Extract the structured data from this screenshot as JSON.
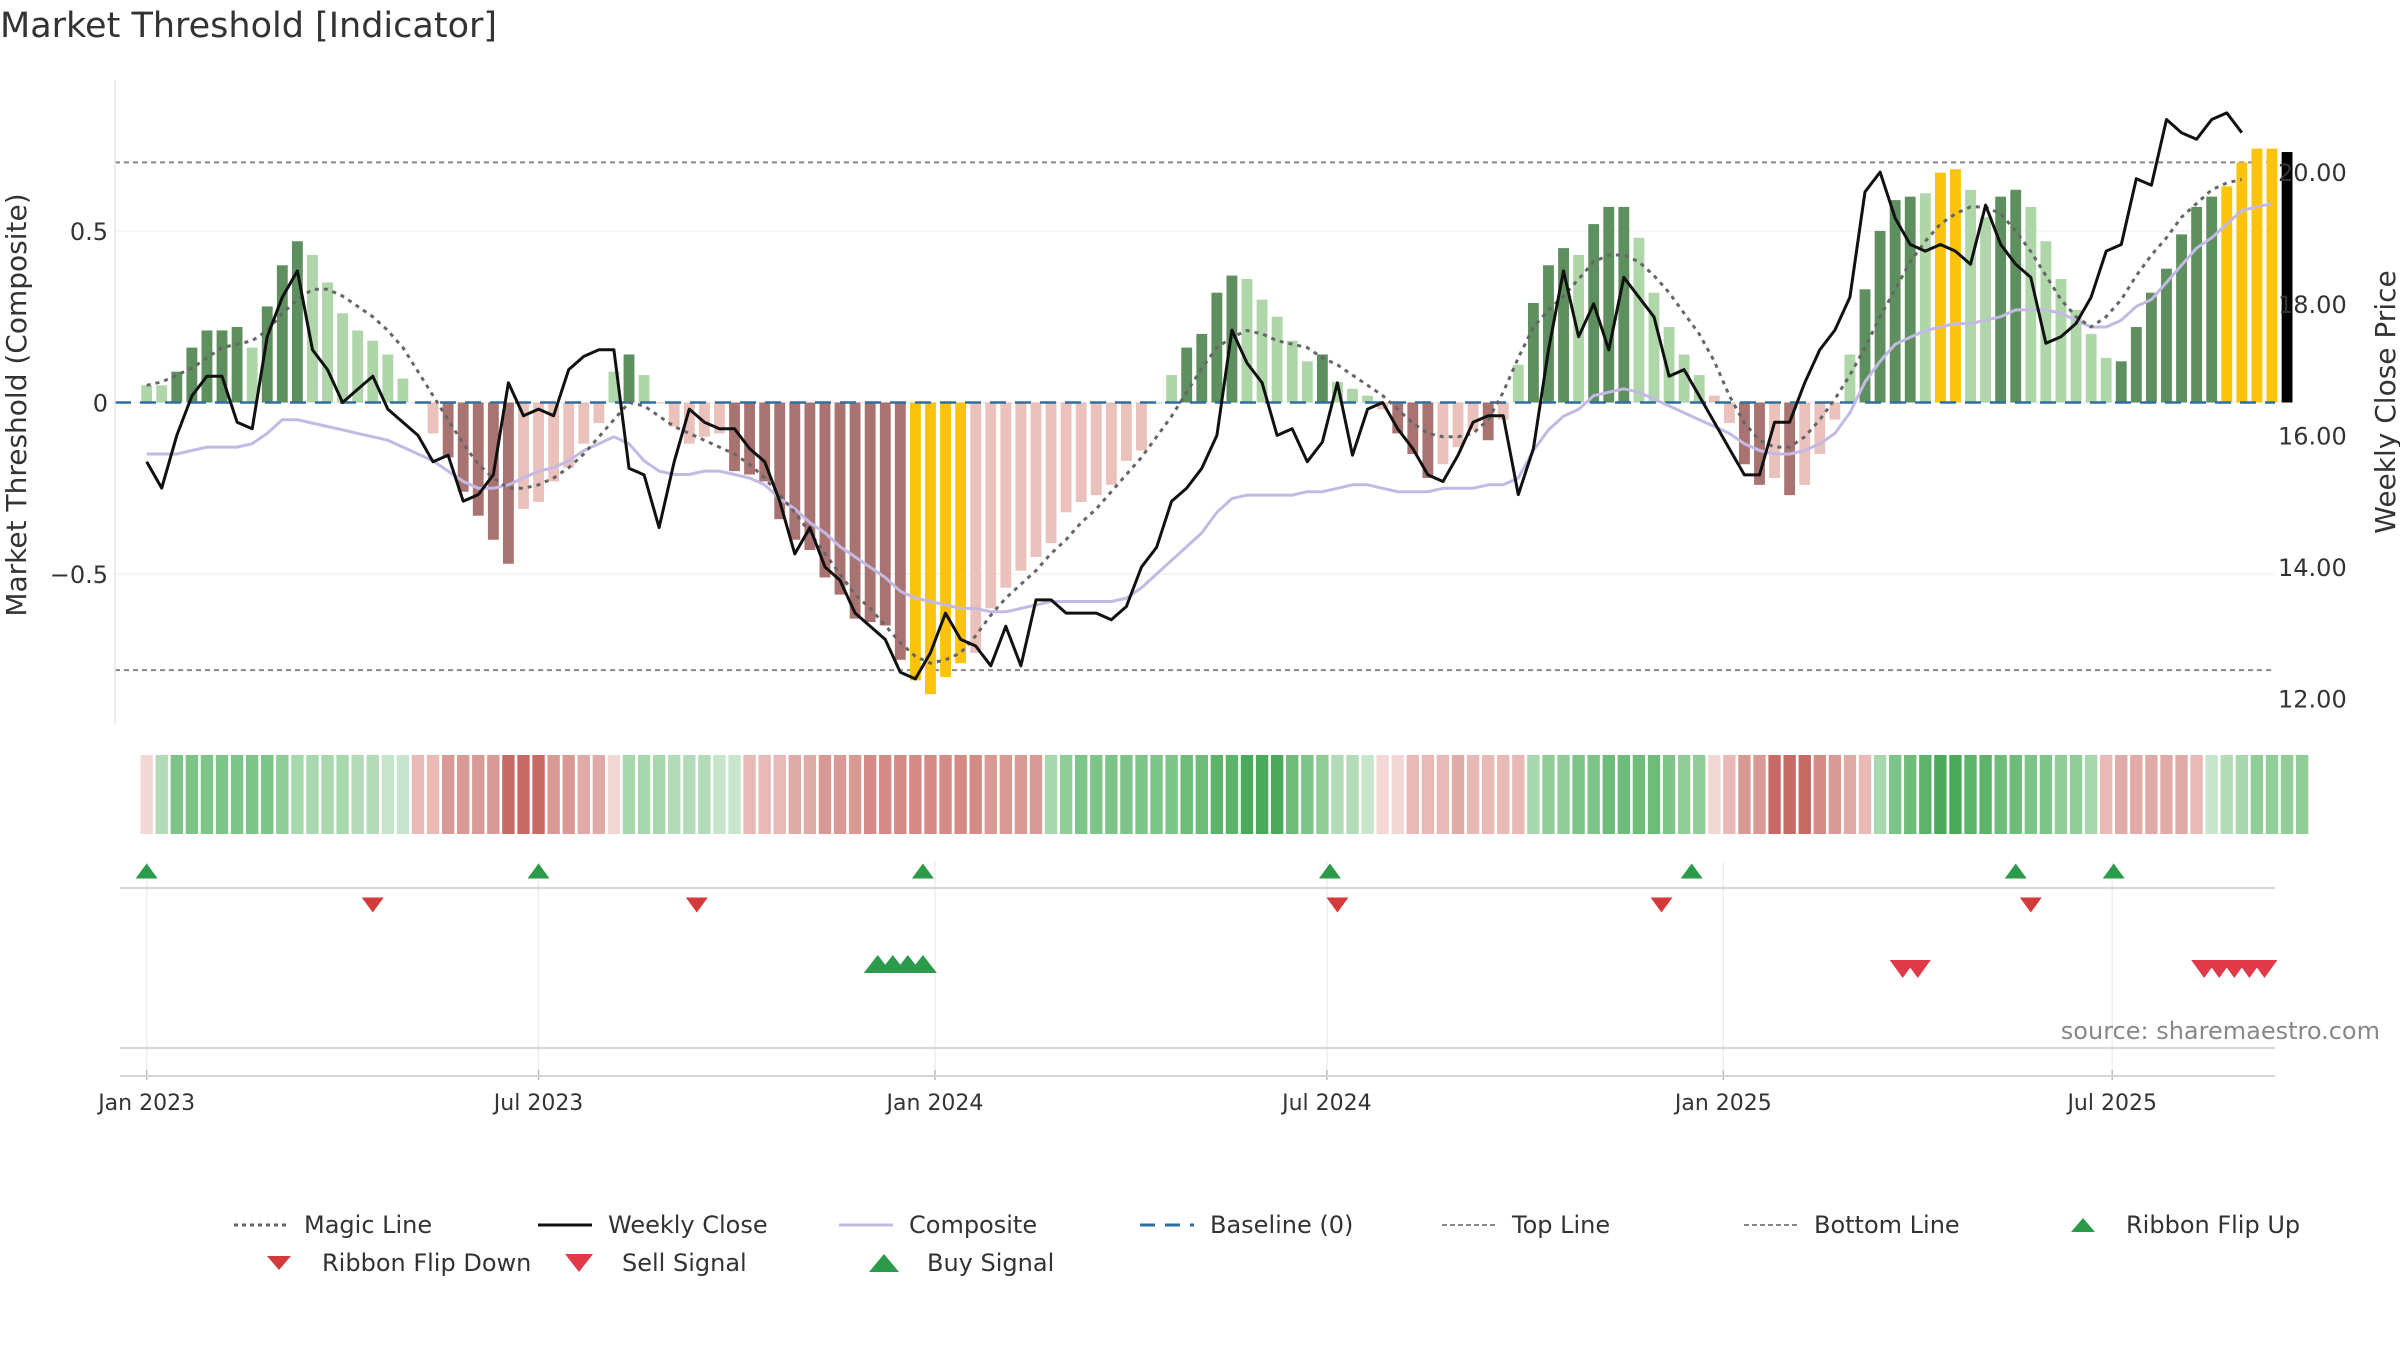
{
  "title": "Market Threshold [Indicator]",
  "source_label": "source: sharemaestro.com",
  "colors": {
    "bar_green_dark": "#5e8f5e",
    "bar_green_light": "#aed6a8",
    "bar_red_dark": "#a87370",
    "bar_red_light": "#ebc1bb",
    "bar_gold": "#fcc30c",
    "weekly_close": "#111111",
    "composite": "#c4b9e4",
    "magic_line": "#666666",
    "baseline": "#2f6f9f",
    "threshold_lines": "#888888",
    "buy": "#2b9a4a",
    "sell": "#e03a48",
    "flip_down": "#d43a3a"
  },
  "chart_data": {
    "type": "bar",
    "title": "Market Threshold [Indicator]",
    "ylabel": "Market Threshold (Composite)",
    "y2label": "Weekly Close Price",
    "ylim": [
      -0.94,
      0.94
    ],
    "y2lim": [
      11.6,
      21.4
    ],
    "yticks": [
      {
        "v": 0.5,
        "label": "0.5"
      },
      {
        "v": 0,
        "label": "0"
      },
      {
        "v": -0.5,
        "label": "−0.5"
      }
    ],
    "y2ticks": [
      {
        "v": 20,
        "label": "20.00"
      },
      {
        "v": 18,
        "label": "18.00"
      },
      {
        "v": 16,
        "label": "16.00"
      },
      {
        "v": 14,
        "label": "14.00"
      },
      {
        "v": 12,
        "label": "12.00"
      }
    ],
    "xlim": [
      -2.1,
      141.2
    ],
    "xticks": [
      {
        "w": 0,
        "label": "Jan 2023"
      },
      {
        "w": 26,
        "label": "Jul 2023"
      },
      {
        "w": 52.3,
        "label": "Jan 2024"
      },
      {
        "w": 78.3,
        "label": "Jul 2024"
      },
      {
        "w": 104.6,
        "label": "Jan 2025"
      },
      {
        "w": 130.4,
        "label": "Jul 2025"
      }
    ],
    "top_line": 0.7,
    "bottom_line": -0.78,
    "composite_bars": [
      0.05,
      0.05,
      0.09,
      0.16,
      0.21,
      0.21,
      0.22,
      0.16,
      0.28,
      0.4,
      0.47,
      0.43,
      0.35,
      0.26,
      0.21,
      0.18,
      0.14,
      0.07,
      0.0,
      -0.09,
      -0.16,
      -0.26,
      -0.33,
      -0.4,
      -0.47,
      -0.31,
      -0.29,
      -0.23,
      -0.19,
      -0.12,
      -0.06,
      0.09,
      0.14,
      0.08,
      0.0,
      -0.07,
      -0.12,
      -0.1,
      -0.09,
      -0.2,
      -0.21,
      -0.23,
      -0.34,
      -0.4,
      -0.43,
      -0.51,
      -0.56,
      -0.63,
      -0.64,
      -0.65,
      -0.75,
      -0.81,
      -0.85,
      -0.8,
      -0.76,
      -0.73,
      -0.6,
      -0.54,
      -0.49,
      -0.45,
      -0.41,
      -0.32,
      -0.29,
      -0.27,
      -0.24,
      -0.17,
      -0.14,
      0.0,
      0.08,
      0.16,
      0.2,
      0.32,
      0.37,
      0.36,
      0.3,
      0.25,
      0.18,
      0.12,
      0.14,
      0.06,
      0.04,
      0.02,
      -0.02,
      -0.09,
      -0.15,
      -0.22,
      -0.18,
      -0.13,
      -0.08,
      -0.11,
      -0.05,
      0.11,
      0.29,
      0.4,
      0.45,
      0.43,
      0.52,
      0.57,
      0.57,
      0.48,
      0.32,
      0.22,
      0.14,
      0.08,
      0.02,
      -0.06,
      -0.18,
      -0.24,
      -0.22,
      -0.27,
      -0.24,
      -0.15,
      -0.05,
      0.14,
      0.33,
      0.5,
      0.59,
      0.6,
      0.61,
      0.67,
      0.68,
      0.62,
      0.54,
      0.6,
      0.62,
      0.57,
      0.47,
      0.36,
      0.27,
      0.2,
      0.13,
      0.12,
      0.22,
      0.32,
      0.39,
      0.49,
      0.57,
      0.6,
      0.63,
      0.7,
      0.74,
      0.74,
      0.73
    ],
    "bar_colors": [
      "#aed6a8",
      "#aed6a8",
      "#5e8f5e",
      "#5e8f5e",
      "#5e8f5e",
      "#5e8f5e",
      "#5e8f5e",
      "#aed6a8",
      "#5e8f5e",
      "#5e8f5e",
      "#5e8f5e",
      "#aed6a8",
      "#aed6a8",
      "#aed6a8",
      "#aed6a8",
      "#aed6a8",
      "#aed6a8",
      "#aed6a8",
      "#ebc1bb",
      "#ebc1bb",
      "#a87370",
      "#a87370",
      "#a87370",
      "#a87370",
      "#a87370",
      "#ebc1bb",
      "#ebc1bb",
      "#ebc1bb",
      "#ebc1bb",
      "#ebc1bb",
      "#ebc1bb",
      "#aed6a8",
      "#5e8f5e",
      "#aed6a8",
      "#ebc1bb",
      "#ebc1bb",
      "#ebc1bb",
      "#ebc1bb",
      "#ebc1bb",
      "#a87370",
      "#a87370",
      "#a87370",
      "#a87370",
      "#a87370",
      "#a87370",
      "#a87370",
      "#a87370",
      "#a87370",
      "#a87370",
      "#a87370",
      "#a87370",
      "#fcc30c",
      "#fcc30c",
      "#fcc30c",
      "#fcc30c",
      "#ebc1bb",
      "#ebc1bb",
      "#ebc1bb",
      "#ebc1bb",
      "#ebc1bb",
      "#ebc1bb",
      "#ebc1bb",
      "#ebc1bb",
      "#ebc1bb",
      "#ebc1bb",
      "#ebc1bb",
      "#ebc1bb",
      "#aed6a8",
      "#aed6a8",
      "#5e8f5e",
      "#5e8f5e",
      "#5e8f5e",
      "#5e8f5e",
      "#aed6a8",
      "#aed6a8",
      "#aed6a8",
      "#aed6a8",
      "#aed6a8",
      "#5e8f5e",
      "#aed6a8",
      "#aed6a8",
      "#aed6a8",
      "#ebc1bb",
      "#a87370",
      "#a87370",
      "#a87370",
      "#ebc1bb",
      "#ebc1bb",
      "#ebc1bb",
      "#a87370",
      "#ebc1bb",
      "#aed6a8",
      "#5e8f5e",
      "#5e8f5e",
      "#5e8f5e",
      "#aed6a8",
      "#5e8f5e",
      "#5e8f5e",
      "#5e8f5e",
      "#aed6a8",
      "#aed6a8",
      "#aed6a8",
      "#aed6a8",
      "#aed6a8",
      "#ebc1bb",
      "#ebc1bb",
      "#a87370",
      "#a87370",
      "#ebc1bb",
      "#a87370",
      "#ebc1bb",
      "#ebc1bb",
      "#ebc1bb",
      "#aed6a8",
      "#5e8f5e",
      "#5e8f5e",
      "#5e8f5e",
      "#5e8f5e",
      "#aed6a8",
      "#fcc30c",
      "#fcc30c",
      "#aed6a8",
      "#aed6a8",
      "#5e8f5e",
      "#5e8f5e",
      "#aed6a8",
      "#aed6a8",
      "#aed6a8",
      "#aed6a8",
      "#aed6a8",
      "#aed6a8",
      "#5e8f5e",
      "#5e8f5e",
      "#5e8f5e",
      "#5e8f5e",
      "#5e8f5e",
      "#5e8f5e",
      "#5e8f5e",
      "#fcc30c",
      "#fcc30c",
      "#fcc30c",
      "#fcc30c"
    ],
    "ribbon_colors": [
      "#f1d8d6",
      "#b3dbb8",
      "#7cc487",
      "#7cc487",
      "#7cc487",
      "#7cc487",
      "#7cc487",
      "#7cc487",
      "#7cc487",
      "#90cd99",
      "#a6d7ad",
      "#a6d7ad",
      "#a6d7ad",
      "#a6d7ad",
      "#b3dbb8",
      "#b3dbb8",
      "#c7e5ca",
      "#c7e5ca",
      "#e8b9b5",
      "#e8b9b5",
      "#d99a95",
      "#d99a95",
      "#d99a95",
      "#d99a95",
      "#c76a65",
      "#c76a65",
      "#c76a65",
      "#d99a95",
      "#d99a95",
      "#e0aba6",
      "#e0aba6",
      "#f1d8d6",
      "#a6d7ad",
      "#a6d7ad",
      "#a6d7ad",
      "#b3dbb8",
      "#b3dbb8",
      "#b3dbb8",
      "#c7e5ca",
      "#c7e5ca",
      "#e8b9b5",
      "#e8b9b5",
      "#e8b9b5",
      "#e0aba6",
      "#e0aba6",
      "#d99a95",
      "#d99a95",
      "#d99a95",
      "#d48a85",
      "#d48a85",
      "#d48a85",
      "#d48a85",
      "#d48a85",
      "#d48a85",
      "#d48a85",
      "#d48a85",
      "#d99a95",
      "#d99a95",
      "#d99a95",
      "#d99a95",
      "#a6d7ad",
      "#90cd99",
      "#7cc487",
      "#7cc487",
      "#7cc487",
      "#7cc487",
      "#7cc487",
      "#7cc487",
      "#7cc487",
      "#6dbc79",
      "#6dbc79",
      "#5cb469",
      "#5cb469",
      "#4aaa5a",
      "#4aaa5a",
      "#4aaa5a",
      "#6dbc79",
      "#7cc487",
      "#90cd99",
      "#b3dbb8",
      "#b3dbb8",
      "#c7e5ca",
      "#f1d8d6",
      "#f1d8d6",
      "#e8b9b5",
      "#e8b9b5",
      "#e8b9b5",
      "#e0aba6",
      "#e8b9b5",
      "#e8b9b5",
      "#e8b9b5",
      "#e8b9b5",
      "#a6d7ad",
      "#90cd99",
      "#90cd99",
      "#7cc487",
      "#7cc487",
      "#6dbc79",
      "#6dbc79",
      "#6dbc79",
      "#6dbc79",
      "#7cc487",
      "#90cd99",
      "#90cd99",
      "#f1d8d6",
      "#e8b9b5",
      "#d99a95",
      "#d99a95",
      "#c76a65",
      "#c76a65",
      "#c76a65",
      "#d48a85",
      "#d99a95",
      "#e0aba6",
      "#e8b9b5",
      "#a6d7ad",
      "#7cc487",
      "#6dbc79",
      "#5cb469",
      "#4aaa5a",
      "#4aaa5a",
      "#5cb469",
      "#5cb469",
      "#6dbc79",
      "#6dbc79",
      "#7cc487",
      "#7cc487",
      "#90cd99",
      "#90cd99",
      "#a6d7ad",
      "#e8b9b5",
      "#e0aba6",
      "#e0aba6",
      "#e0aba6",
      "#e0aba6",
      "#e0aba6",
      "#e8b9b5",
      "#c7e5ca",
      "#b3dbb8",
      "#a6d7ad",
      "#90cd99",
      "#90cd99",
      "#90cd99",
      "#90cd99"
    ],
    "series": [
      {
        "name": "Weekly Close",
        "values": [
          15.6,
          15.2,
          16.0,
          16.6,
          16.9,
          16.9,
          16.2,
          16.1,
          17.5,
          18.1,
          18.5,
          17.3,
          17.0,
          16.5,
          16.7,
          16.9,
          16.4,
          16.2,
          16.0,
          15.6,
          15.7,
          15.0,
          15.1,
          15.4,
          16.8,
          16.3,
          16.4,
          16.3,
          17.0,
          17.2,
          17.3,
          17.3,
          15.5,
          15.4,
          14.6,
          15.6,
          16.4,
          16.2,
          16.1,
          16.1,
          15.8,
          15.6,
          15.0,
          14.2,
          14.6,
          14.0,
          13.8,
          13.3,
          13.1,
          12.9,
          12.4,
          12.3,
          12.7,
          13.3,
          12.9,
          12.8,
          12.5,
          13.1,
          12.5,
          13.5,
          13.5,
          13.3,
          13.3,
          13.3,
          13.2,
          13.4,
          14.0,
          14.3,
          15.0,
          15.2,
          15.5,
          16.0,
          17.6,
          17.1,
          16.8,
          16.0,
          16.1,
          15.6,
          15.9,
          16.8,
          15.7,
          16.4,
          16.5,
          16.1,
          15.8,
          15.4,
          15.3,
          15.7,
          16.2,
          16.3,
          16.3,
          15.1,
          15.8,
          17.3,
          18.5,
          17.5,
          18.0,
          17.3,
          18.4,
          18.1,
          17.8,
          16.9,
          17.0,
          16.6,
          16.2,
          15.8,
          15.4,
          15.4,
          16.2,
          16.2,
          16.8,
          17.3,
          17.6,
          18.1,
          19.7,
          20.0,
          19.3,
          18.9,
          18.8,
          18.9,
          18.8,
          18.6,
          19.5,
          18.9,
          18.6,
          18.4,
          17.4,
          17.5,
          17.7,
          18.1,
          18.8,
          18.9,
          19.9,
          19.8,
          20.8,
          20.6,
          20.5,
          20.8,
          20.9,
          20.6
        ],
        "axis": "right"
      },
      {
        "name": "Composite",
        "values": [
          -0.15,
          -0.15,
          -0.15,
          -0.14,
          -0.13,
          -0.13,
          -0.13,
          -0.12,
          -0.09,
          -0.05,
          -0.05,
          -0.06,
          -0.07,
          -0.08,
          -0.09,
          -0.1,
          -0.11,
          -0.13,
          -0.15,
          -0.17,
          -0.2,
          -0.23,
          -0.25,
          -0.25,
          -0.24,
          -0.22,
          -0.2,
          -0.19,
          -0.17,
          -0.14,
          -0.12,
          -0.1,
          -0.12,
          -0.17,
          -0.2,
          -0.21,
          -0.21,
          -0.2,
          -0.2,
          -0.21,
          -0.22,
          -0.24,
          -0.28,
          -0.31,
          -0.35,
          -0.38,
          -0.42,
          -0.45,
          -0.48,
          -0.51,
          -0.55,
          -0.57,
          -0.58,
          -0.59,
          -0.6,
          -0.6,
          -0.61,
          -0.61,
          -0.6,
          -0.59,
          -0.58,
          -0.58,
          -0.58,
          -0.58,
          -0.58,
          -0.57,
          -0.54,
          -0.5,
          -0.46,
          -0.42,
          -0.38,
          -0.32,
          -0.28,
          -0.27,
          -0.27,
          -0.27,
          -0.27,
          -0.26,
          -0.26,
          -0.25,
          -0.24,
          -0.24,
          -0.25,
          -0.26,
          -0.26,
          -0.26,
          -0.25,
          -0.25,
          -0.25,
          -0.24,
          -0.24,
          -0.22,
          -0.14,
          -0.08,
          -0.04,
          -0.02,
          0.02,
          0.03,
          0.04,
          0.03,
          0.01,
          -0.01,
          -0.03,
          -0.05,
          -0.07,
          -0.09,
          -0.12,
          -0.14,
          -0.15,
          -0.15,
          -0.14,
          -0.12,
          -0.09,
          -0.03,
          0.06,
          0.12,
          0.17,
          0.19,
          0.21,
          0.22,
          0.23,
          0.23,
          0.24,
          0.25,
          0.27,
          0.27,
          0.27,
          0.26,
          0.24,
          0.22,
          0.22,
          0.24,
          0.28,
          0.3,
          0.35,
          0.4,
          0.45,
          0.48,
          0.52,
          0.56,
          0.57,
          0.58
        ],
        "axis": "left"
      },
      {
        "name": "Magic Line",
        "values": [
          0.05,
          0.06,
          0.08,
          0.1,
          0.13,
          0.16,
          0.17,
          0.18,
          0.21,
          0.26,
          0.3,
          0.33,
          0.33,
          0.31,
          0.28,
          0.25,
          0.21,
          0.16,
          0.09,
          0.02,
          -0.05,
          -0.12,
          -0.18,
          -0.22,
          -0.25,
          -0.25,
          -0.24,
          -0.22,
          -0.19,
          -0.15,
          -0.1,
          -0.05,
          0.0,
          -0.01,
          -0.04,
          -0.07,
          -0.09,
          -0.11,
          -0.13,
          -0.15,
          -0.18,
          -0.22,
          -0.27,
          -0.32,
          -0.38,
          -0.44,
          -0.5,
          -0.56,
          -0.6,
          -0.65,
          -0.7,
          -0.74,
          -0.76,
          -0.75,
          -0.73,
          -0.68,
          -0.62,
          -0.57,
          -0.53,
          -0.49,
          -0.44,
          -0.4,
          -0.35,
          -0.31,
          -0.26,
          -0.21,
          -0.16,
          -0.1,
          -0.04,
          0.03,
          0.1,
          0.16,
          0.19,
          0.21,
          0.2,
          0.18,
          0.17,
          0.16,
          0.13,
          0.11,
          0.08,
          0.05,
          0.02,
          -0.02,
          -0.06,
          -0.09,
          -0.1,
          -0.1,
          -0.09,
          -0.05,
          0.03,
          0.13,
          0.22,
          0.27,
          0.31,
          0.36,
          0.41,
          0.43,
          0.43,
          0.41,
          0.37,
          0.32,
          0.26,
          0.2,
          0.12,
          0.02,
          -0.06,
          -0.11,
          -0.13,
          -0.13,
          -0.1,
          -0.05,
          0.01,
          0.08,
          0.16,
          0.25,
          0.33,
          0.41,
          0.47,
          0.52,
          0.55,
          0.57,
          0.57,
          0.55,
          0.5,
          0.44,
          0.37,
          0.3,
          0.25,
          0.22,
          0.25,
          0.3,
          0.37,
          0.43,
          0.48,
          0.54,
          0.58,
          0.62,
          0.64,
          0.65
        ],
        "axis": "left"
      }
    ],
    "baseline": 0,
    "ribbon_flip_up_weeks": [
      0,
      26,
      51.5,
      78.5,
      102.5,
      124,
      130.5
    ],
    "ribbon_flip_down_weeks": [
      15,
      36.5,
      79,
      100.5,
      125
    ],
    "buy_signal_weeks": [
      48.5,
      49.5,
      50.5,
      51.5
    ],
    "sell_signal_weeks": [
      116.5,
      117.5,
      136.5,
      137.5,
      138.5,
      139.5,
      140.5
    ]
  },
  "legend": [
    {
      "label": "Magic Line",
      "symbol": "dotted",
      "color": "#666666"
    },
    {
      "label": "Weekly Close",
      "symbol": "solid",
      "color": "#111111"
    },
    {
      "label": "Composite",
      "symbol": "solid",
      "color": "#c4b9e4"
    },
    {
      "label": "Baseline (0)",
      "symbol": "dashed",
      "color": "#2f6f9f"
    },
    {
      "label": "Top Line",
      "symbol": "fine-dash",
      "color": "#888888"
    },
    {
      "label": "Bottom Line",
      "symbol": "fine-dash",
      "color": "#888888"
    },
    {
      "label": "Ribbon Flip Up",
      "symbol": "triangle-up",
      "color": "#2b9a4a"
    },
    {
      "label": "Ribbon Flip Down",
      "symbol": "triangle-down",
      "color": "#d43a3a"
    },
    {
      "label": "Sell Signal",
      "symbol": "triangle-down-big",
      "color": "#e03a48"
    },
    {
      "label": "Buy Signal",
      "symbol": "triangle-up-big",
      "color": "#2b9a4a"
    }
  ]
}
